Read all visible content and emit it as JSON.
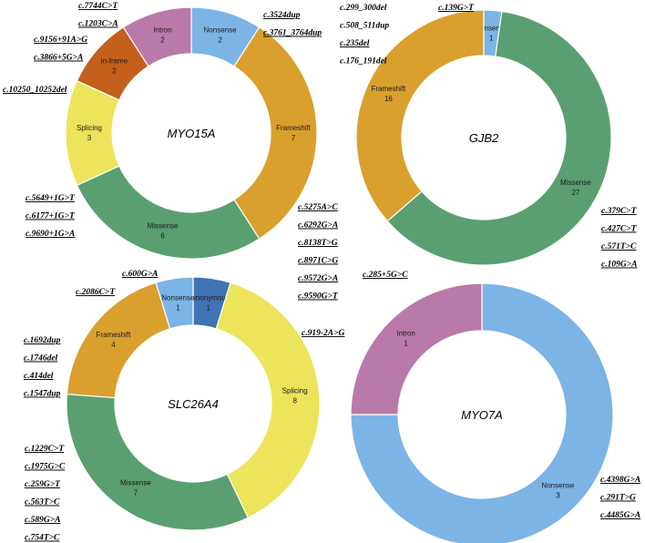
{
  "colors": {
    "Nonsense": "#7cb4e6",
    "Frameshift": "#d9a02e",
    "Missense": "#5a9f71",
    "Splicing": "#ece45a",
    "In-frame": "#c45f1c",
    "Intron": "#b97aa9",
    "Synonymous": "#3f73b2",
    "separator": "#ffffff"
  },
  "chart_data": [
    {
      "type": "pie",
      "variant": "donut",
      "title": "MYO15A",
      "slices": [
        {
          "label": "Nonsense",
          "value": 2
        },
        {
          "label": "Frameshift",
          "value": 7
        },
        {
          "label": "Missense",
          "value": 6
        },
        {
          "label": "Splicing",
          "value": 3
        },
        {
          "label": "In-frame",
          "value": 2
        },
        {
          "label": "Intron",
          "value": 2
        }
      ],
      "annotations": [
        {
          "category": "Nonsense",
          "variants": [
            "c.7744C>T",
            "c.1203C>A"
          ]
        },
        {
          "category": "Frameshift",
          "variants": [
            "c.3524dup",
            "c.3761_3764dup"
          ]
        },
        {
          "category": "Intron",
          "variants": [
            "c.9156+91A>G",
            "c.3866+5G>A"
          ]
        },
        {
          "category": "In-frame",
          "variants": [
            "c.10250_10252del"
          ]
        },
        {
          "category": "Splicing",
          "variants": [
            "c.5649+1G>T",
            "c.6177+1G>T",
            "c.9690+1G>A"
          ]
        },
        {
          "category": "Missense",
          "variants": [
            "c.5275A>C",
            "c.6292G>A",
            "c.8138T>G",
            "c.8971C>G",
            "c.9572G>A",
            "c.9590G>T"
          ]
        }
      ]
    },
    {
      "type": "pie",
      "variant": "donut",
      "title": "GJB2",
      "slices": [
        {
          "label": "Nonsense",
          "value": 1
        },
        {
          "label": "Missense",
          "value": 27
        },
        {
          "label": "Frameshift",
          "value": 16
        }
      ],
      "annotations": [
        {
          "category": "Frameshift",
          "variants": [
            "c.299_300del",
            "c.508_511dup",
            "c.235del",
            "c.176_191del"
          ]
        },
        {
          "category": "Nonsense",
          "variants": [
            "c.139G>T"
          ]
        },
        {
          "category": "Missense",
          "variants": [
            "c.379C>T",
            "c.427C>T",
            "c.571T>C",
            "c.109G>A"
          ]
        }
      ]
    },
    {
      "type": "pie",
      "variant": "donut",
      "title": "SLC26A4",
      "slices": [
        {
          "label": "Synonymous",
          "value": 1
        },
        {
          "label": "Splicing",
          "value": 8
        },
        {
          "label": "Missense",
          "value": 7
        },
        {
          "label": "Frameshift",
          "value": 4
        },
        {
          "label": "Nonsense",
          "value": 1
        }
      ],
      "annotations": [
        {
          "category": "Synonymous",
          "variants": [
            "c.600G>A"
          ]
        },
        {
          "category": "Nonsense",
          "variants": [
            "c.2086C>T"
          ]
        },
        {
          "category": "Splicing",
          "variants": [
            "c.919-2A>G"
          ]
        },
        {
          "category": "Frameshift",
          "variants": [
            "c.1692dup",
            "c.1746del",
            "c.414del",
            "c.1547dup"
          ]
        },
        {
          "category": "Missense",
          "variants": [
            "c.1229C>T",
            "c.1975G>C",
            "c.259G>T",
            "c.563T>C",
            "c.589G>A",
            "c.754T>C"
          ]
        }
      ]
    },
    {
      "type": "pie",
      "variant": "donut",
      "title": "MYO7A",
      "slices": [
        {
          "label": "Nonsense",
          "value": 3
        },
        {
          "label": "Intron",
          "value": 1
        }
      ],
      "annotations": [
        {
          "category": "Intron",
          "variants": [
            "c.285+5G>C"
          ]
        },
        {
          "category": "Nonsense",
          "variants": [
            "c.4398G>A",
            "c.291T>G",
            "c.4485G>A"
          ]
        }
      ]
    }
  ]
}
